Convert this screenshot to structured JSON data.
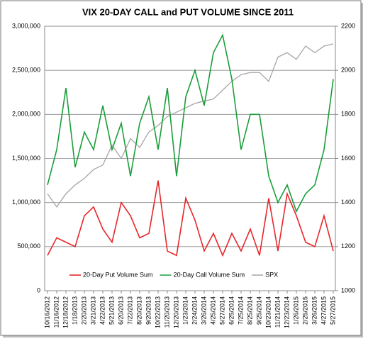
{
  "chart_data": {
    "type": "line",
    "title": "VIX 20-DAY CALL and PUT VOLUME SINCE 2011",
    "categories": [
      "10/16/2012",
      "11/16/2012",
      "12/18/2012",
      "1/18/2013",
      "2/20/2013",
      "3/21/2013",
      "4/22/2013",
      "5/21/2013",
      "6/20/2013",
      "7/22/2013",
      "8/20/2013",
      "9/20/2013",
      "10/22/2013",
      "11/20/2013",
      "12/20/2013",
      "1/23/2014",
      "2/24/2014",
      "3/26/2014",
      "4/25/2014",
      "5/27/2014",
      "6/25/2014",
      "7/25/2014",
      "8/25/2014",
      "9/25/2014",
      "10/23/2014",
      "11/21/2014",
      "12/23/2014",
      "1/26/2015",
      "2/25/2015",
      "3/26/2015",
      "4/27/2015",
      "5/27/2015"
    ],
    "series": [
      {
        "name": "20-Day Put Volume Sum",
        "color": "#e8262a",
        "values": [
          400000,
          600000,
          550000,
          500000,
          850000,
          950000,
          700000,
          550000,
          1000000,
          850000,
          600000,
          650000,
          1250000,
          450000,
          400000,
          1050000,
          800000,
          450000,
          650000,
          400000,
          650000,
          450000,
          700000,
          400000,
          1050000,
          450000,
          1100000,
          850000,
          550000,
          500000,
          850000,
          450000
        ]
      },
      {
        "name": "20-Day Call Volume Sum",
        "color": "#1a9e3a",
        "values": [
          1200000,
          1600000,
          2300000,
          1400000,
          1800000,
          1600000,
          2100000,
          1600000,
          1900000,
          1300000,
          1900000,
          2200000,
          1600000,
          2300000,
          1300000,
          2200000,
          2500000,
          2100000,
          2700000,
          2900000,
          2400000,
          1600000,
          2000000,
          2000000,
          1300000,
          1000000,
          1200000,
          900000,
          1100000,
          1200000,
          1600000,
          2400000
        ]
      },
      {
        "name": "SPX",
        "color": "#a6a6a6",
        "axis": "y2",
        "values": [
          1440,
          1380,
          1440,
          1480,
          1510,
          1550,
          1570,
          1660,
          1600,
          1690,
          1650,
          1720,
          1750,
          1790,
          1810,
          1830,
          1850,
          1860,
          1870,
          1910,
          1950,
          1980,
          1990,
          1990,
          1950,
          2060,
          2080,
          2050,
          2110,
          2080,
          2110,
          2120
        ]
      }
    ],
    "ylim": [
      0,
      3000000
    ],
    "yticks": [
      {
        "value": 0,
        "label": "0"
      },
      {
        "value": 500000,
        "label": "500,000"
      },
      {
        "value": 1000000,
        "label": "1,000,000"
      },
      {
        "value": 1500000,
        "label": "1,500,000"
      },
      {
        "value": 2000000,
        "label": "2,000,000"
      },
      {
        "value": 2500000,
        "label": "2,500,000"
      },
      {
        "value": 3000000,
        "label": "3,000,000"
      }
    ],
    "y2lim": [
      1000,
      2200
    ],
    "y2ticks": [
      1000,
      1200,
      1400,
      1600,
      1800,
      2000,
      2200
    ],
    "grid": true
  }
}
